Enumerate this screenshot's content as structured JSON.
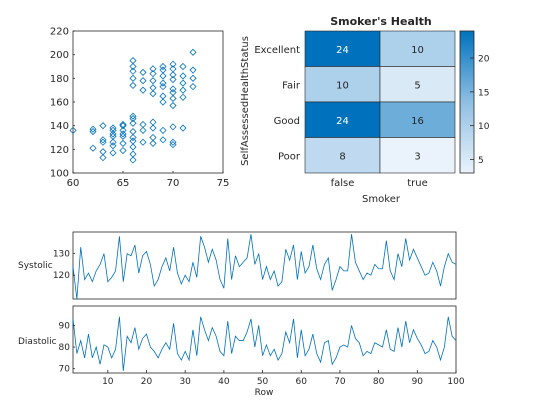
{
  "chart_data": [
    {
      "type": "scatter",
      "xlim": [
        60,
        75
      ],
      "ylim": [
        100,
        220
      ],
      "xticks": [
        "60",
        "65",
        "70",
        "75"
      ],
      "yticks": [
        "100",
        "120",
        "140",
        "160",
        "180",
        "200",
        "220"
      ],
      "marker": "diamond",
      "color": "#0072BD",
      "points": [
        [
          60,
          136
        ],
        [
          62,
          137
        ],
        [
          62,
          121
        ],
        [
          62,
          135
        ],
        [
          63,
          140
        ],
        [
          63,
          126
        ],
        [
          63,
          118
        ],
        [
          63,
          113
        ],
        [
          63,
          128
        ],
        [
          64,
          136
        ],
        [
          64,
          133
        ],
        [
          64,
          131
        ],
        [
          64,
          126
        ],
        [
          64,
          138
        ],
        [
          64,
          123
        ],
        [
          64,
          117
        ],
        [
          65,
          141
        ],
        [
          65,
          136
        ],
        [
          65,
          131
        ],
        [
          65,
          125
        ],
        [
          65,
          119
        ],
        [
          65,
          140
        ],
        [
          65,
          133
        ],
        [
          66,
          148
        ],
        [
          66,
          142
        ],
        [
          66,
          135
        ],
        [
          66,
          130
        ],
        [
          66,
          122
        ],
        [
          66,
          116
        ],
        [
          66,
          111
        ],
        [
          66,
          146
        ],
        [
          66,
          127
        ],
        [
          67,
          141
        ],
        [
          67,
          136
        ],
        [
          67,
          126
        ],
        [
          68,
          143
        ],
        [
          68,
          138
        ],
        [
          68,
          130
        ],
        [
          68,
          125
        ],
        [
          69,
          136
        ],
        [
          69,
          128
        ],
        [
          70,
          139
        ],
        [
          70,
          126
        ],
        [
          70,
          124
        ],
        [
          71,
          138
        ],
        [
          66,
          195
        ],
        [
          66,
          186
        ],
        [
          66,
          180
        ],
        [
          66,
          174
        ],
        [
          66,
          190
        ],
        [
          67,
          185
        ],
        [
          67,
          178
        ],
        [
          67,
          170
        ],
        [
          68,
          184
        ],
        [
          68,
          178
        ],
        [
          68,
          167
        ],
        [
          68,
          188
        ],
        [
          68,
          172
        ],
        [
          69,
          190
        ],
        [
          69,
          187
        ],
        [
          69,
          182
        ],
        [
          69,
          176
        ],
        [
          69,
          173
        ],
        [
          69,
          165
        ],
        [
          69,
          160
        ],
        [
          70,
          192
        ],
        [
          70,
          188
        ],
        [
          70,
          183
        ],
        [
          70,
          179
        ],
        [
          70,
          171
        ],
        [
          70,
          168
        ],
        [
          70,
          163
        ],
        [
          70,
          157
        ],
        [
          71,
          190
        ],
        [
          71,
          182
        ],
        [
          71,
          176
        ],
        [
          71,
          170
        ],
        [
          71,
          164
        ],
        [
          72,
          202
        ],
        [
          72,
          187
        ],
        [
          72,
          180
        ],
        [
          72,
          173
        ]
      ]
    },
    {
      "type": "heatmap",
      "title": "Smoker's Health",
      "xlabel": "Smoker",
      "ylabel": "SelfAssessedHealthStatus",
      "x_categories": [
        "false",
        "true"
      ],
      "y_categories": [
        "Excellent",
        "Fair",
        "Good",
        "Poor"
      ],
      "values": [
        [
          24,
          10
        ],
        [
          10,
          5
        ],
        [
          24,
          16
        ],
        [
          8,
          3
        ]
      ],
      "colorbar": {
        "min": 3,
        "max": 24,
        "ticks": [
          "5",
          "10",
          "15",
          "20"
        ]
      }
    },
    {
      "type": "line",
      "ylabel": "Systolic",
      "xlim": [
        1,
        100
      ],
      "ylim": [
        109,
        140
      ],
      "yticks": [
        "120",
        "130"
      ],
      "color": "#0072BD",
      "values": [
        124,
        109,
        133,
        118,
        121,
        117,
        122,
        125,
        130,
        117,
        119,
        122,
        138,
        117,
        130,
        129,
        134,
        121,
        129,
        131,
        125,
        115,
        118,
        124,
        128,
        122,
        133,
        121,
        116,
        120,
        117,
        126,
        119,
        138,
        133,
        126,
        132,
        127,
        118,
        114,
        137,
        118,
        129,
        124,
        126,
        128,
        139,
        125,
        130,
        118,
        124,
        118,
        122,
        115,
        117,
        132,
        127,
        134,
        118,
        131,
        121,
        124,
        134,
        123,
        118,
        125,
        128,
        113,
        118,
        124,
        122,
        122,
        139,
        126,
        122,
        118,
        121,
        120,
        125,
        123,
        123,
        136,
        122,
        118,
        130,
        124,
        137,
        127,
        132,
        128,
        124,
        120,
        121,
        126,
        122,
        115,
        124,
        130,
        126,
        125
      ]
    },
    {
      "type": "line",
      "ylabel": "Diastolic",
      "xlabel": "Row",
      "xlim": [
        1,
        100
      ],
      "ylim": [
        68,
        99
      ],
      "xticks": [
        "10",
        "20",
        "30",
        "40",
        "50",
        "60",
        "70",
        "80",
        "90",
        "100"
      ],
      "yticks": [
        "70",
        "80",
        "90"
      ],
      "color": "#0072BD",
      "values": [
        93,
        77,
        83,
        75,
        86,
        75,
        80,
        72,
        81,
        80,
        75,
        79,
        94,
        69,
        85,
        82,
        89,
        79,
        84,
        86,
        80,
        78,
        75,
        79,
        82,
        79,
        91,
        77,
        74,
        78,
        74,
        88,
        76,
        94,
        88,
        83,
        89,
        85,
        78,
        76,
        92,
        77,
        85,
        83,
        83,
        87,
        93,
        80,
        90,
        76,
        81,
        76,
        79,
        74,
        77,
        87,
        82,
        93,
        75,
        88,
        76,
        79,
        86,
        77,
        73,
        82,
        83,
        72,
        75,
        80,
        81,
        80,
        90,
        84,
        82,
        76,
        78,
        77,
        82,
        81,
        80,
        88,
        79,
        78,
        89,
        80,
        92,
        82,
        88,
        84,
        81,
        77,
        78,
        83,
        80,
        74,
        80,
        94,
        85,
        83
      ]
    }
  ]
}
